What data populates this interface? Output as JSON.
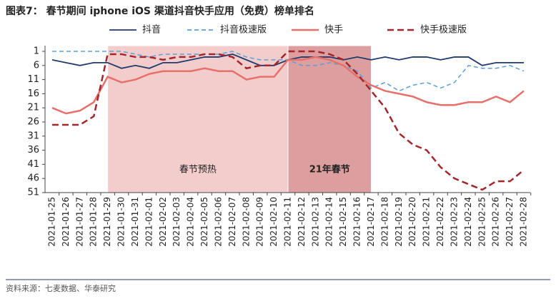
{
  "chart_data": {
    "type": "line",
    "title": "图表7：    春节期间 iphone iOS 渠道抖音快手应用（免费）榜单排名",
    "source": "资料来源：七麦数据、华泰研究",
    "categories": [
      "2021-01-25",
      "2021-01-26",
      "2021-01-27",
      "2021-01-28",
      "2021-01-29",
      "2021-01-30",
      "2021-01-31",
      "2021-02-01",
      "2021-02-02",
      "2021-02-03",
      "2021-02-04",
      "2021-02-05",
      "2021-02-06",
      "2021-02-07",
      "2021-02-08",
      "2021-02-09",
      "2021-02-10",
      "2021-02-11",
      "2021-02-12",
      "2021-02-13",
      "2021-02-14",
      "2021-02-15",
      "2021-02-16",
      "2021-02-17",
      "2021-02-18",
      "2021-02-19",
      "2021-02-20",
      "2021-02-21",
      "2021-02-22",
      "2021-02-23",
      "2021-02-24",
      "2021-02-25",
      "2021-02-26",
      "2021-02-27",
      "2021-02-28"
    ],
    "series": [
      {
        "name": "抖音",
        "color": "#1f3a6e",
        "dashed": false,
        "values": [
          4,
          5,
          6,
          5,
          5,
          7,
          6,
          7,
          5,
          5,
          4,
          3,
          3,
          2,
          4,
          6,
          6,
          4,
          3,
          3,
          3,
          4,
          3,
          4,
          3,
          4,
          3,
          3,
          4,
          3,
          3,
          6,
          5,
          5,
          5
        ]
      },
      {
        "name": "抖音极速版",
        "color": "#5aa0d8",
        "dashed": true,
        "values": [
          1,
          1,
          1,
          1,
          1,
          1,
          2,
          3,
          2,
          2,
          2,
          2,
          2,
          1,
          3,
          4,
          4,
          4,
          6,
          6,
          5,
          6,
          8,
          14,
          12,
          15,
          13,
          12,
          14,
          12,
          6,
          7,
          7,
          6,
          8
        ]
      },
      {
        "name": "快手",
        "color": "#e8706a",
        "dashed": false,
        "values": [
          21,
          23,
          22,
          19,
          10,
          12,
          11,
          9,
          8,
          8,
          8,
          7,
          8,
          8,
          11,
          10,
          10,
          4,
          4,
          3,
          4,
          6,
          10,
          13,
          15,
          16,
          17,
          19,
          20,
          20,
          19,
          19,
          17,
          19,
          15
        ]
      },
      {
        "name": "快手极速版",
        "color": "#a5262a",
        "dashed": true,
        "values": [
          27,
          27,
          27,
          24,
          2,
          2,
          3,
          3,
          4,
          3,
          3,
          2,
          2,
          3,
          7,
          6,
          6,
          1,
          1,
          1,
          2,
          4,
          9,
          15,
          21,
          30,
          34,
          36,
          42,
          46,
          48,
          50,
          47,
          47,
          43
        ]
      }
    ],
    "bands": [
      {
        "label": "春节预热",
        "from": "2021-01-29",
        "to": "2021-02-11",
        "color": "#f3cccc",
        "bold": false
      },
      {
        "label": "21年春节",
        "from": "2021-02-11",
        "to": "2021-02-17",
        "color": "#dc9e9e",
        "bold": true
      }
    ],
    "ylim": [
      1,
      51
    ],
    "y_inverted": true,
    "yticks": [
      1,
      6,
      11,
      16,
      21,
      26,
      31,
      36,
      41,
      46,
      51
    ]
  }
}
